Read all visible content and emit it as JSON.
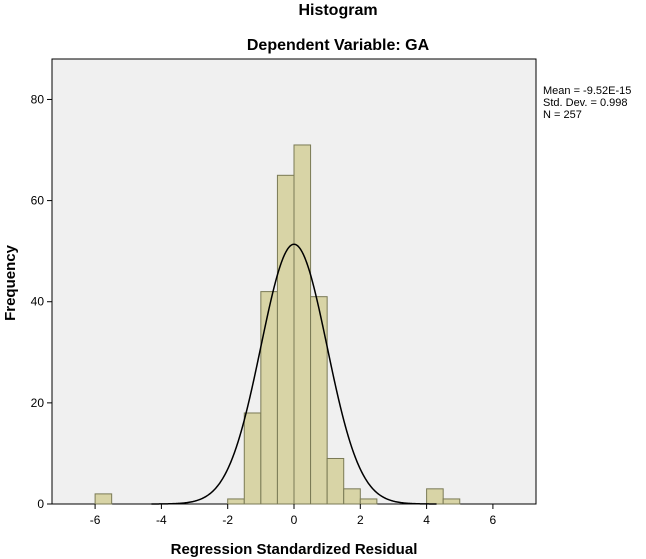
{
  "chart_data": {
    "type": "bar",
    "title": "Histogram",
    "subtitle": "Dependent Variable: GA",
    "xlabel": "Regression Standardized Residual",
    "ylabel": "Frequency",
    "xlim": [
      -7.3,
      7.3
    ],
    "ylim": [
      0,
      88
    ],
    "x_ticks": [
      -6,
      -4,
      -2,
      0,
      2,
      4,
      6
    ],
    "y_ticks": [
      0,
      20,
      40,
      60,
      80
    ],
    "bin_width": 0.5,
    "bins": [
      {
        "start": -6.0,
        "end": -5.5,
        "value": 2
      },
      {
        "start": -2.0,
        "end": -1.5,
        "value": 1
      },
      {
        "start": -1.5,
        "end": -1.0,
        "value": 18
      },
      {
        "start": -1.0,
        "end": -0.5,
        "value": 42
      },
      {
        "start": -0.5,
        "end": 0.0,
        "value": 65
      },
      {
        "start": 0.0,
        "end": 0.5,
        "value": 71
      },
      {
        "start": 0.5,
        "end": 1.0,
        "value": 41
      },
      {
        "start": 1.0,
        "end": 1.5,
        "value": 9
      },
      {
        "start": 1.5,
        "end": 2.0,
        "value": 3
      },
      {
        "start": 2.0,
        "end": 2.5,
        "value": 1
      },
      {
        "start": 4.0,
        "end": 4.5,
        "value": 3
      },
      {
        "start": 4.5,
        "end": 5.0,
        "value": 1
      }
    ],
    "normal_curve": {
      "mean": -9.52e-15,
      "std_dev": 0.998,
      "n": 257
    },
    "stats": [
      "Mean = -9.52E-15",
      "Std. Dev. = 0.998",
      "N = 257"
    ],
    "grid": false,
    "legend_position": "right",
    "colors": {
      "bar_fill": "#d8d4a6",
      "bar_stroke": "#7a7a55",
      "plot_background": "#f0f0f0",
      "curve": "#000000"
    }
  }
}
